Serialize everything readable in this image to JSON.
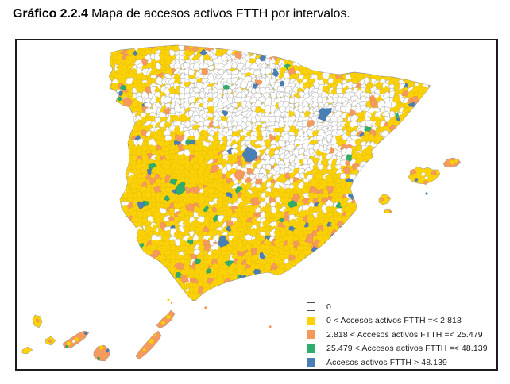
{
  "title": {
    "label_bold": "Gráfico 2.2.4",
    "label_rest": " Mapa de accesos activos FTTH por intervalos."
  },
  "legend": {
    "items": [
      {
        "label": "0",
        "color": "#FFFFFF"
      },
      {
        "label": "0 < Accesos activos FTTH =< 2.818",
        "color": "#FBD108"
      },
      {
        "label": "2.818 < Accesos activos FTTH =< 25.479",
        "color": "#F5995C"
      },
      {
        "label": "25.479 < Accesos activos FTTH =< 48.139",
        "color": "#2EAD6C"
      },
      {
        "label": "Accesos activos FTTH > 48.139",
        "color": "#4A7FB5"
      }
    ]
  },
  "colors": {
    "zero": "#FFFFFF",
    "low": "#FBD108",
    "mid": "#F5995C",
    "high": "#2EAD6C",
    "top": "#4A7FB5",
    "municipal_border": "#b4b4b4",
    "coast": "#8f8f8f",
    "frame": "#1b1b1b",
    "legend_zero_border": "#4a4a4a"
  }
}
